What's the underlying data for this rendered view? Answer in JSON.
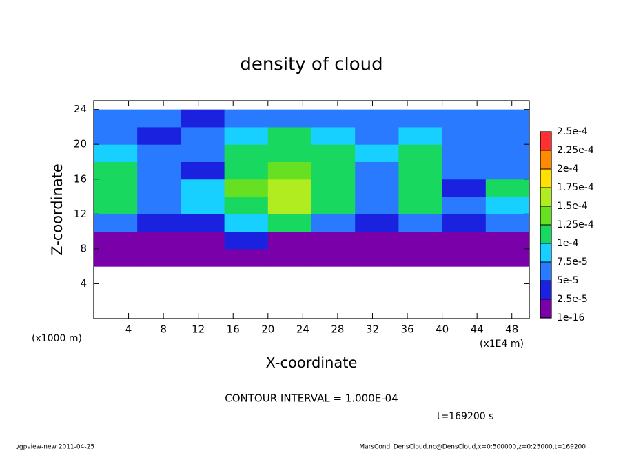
{
  "chart_data": {
    "type": "heatmap",
    "title": "density of cloud",
    "x_label": "X-coordinate",
    "y_label": "Z-coordinate",
    "x_unit_left": "(x1000 m)",
    "x_unit_right": "(x1E4 m)",
    "contour_note": "CONTOUR INTERVAL = 1.000E-04",
    "time_note": "t=169200 s",
    "footer_left": "./gpview-new  2011-04-25",
    "footer_right": "MarsCond_DensCloud.nc@DensCloud,x=0:500000,z=0:25000,t=169200",
    "xlim": [
      0,
      50
    ],
    "ylim": [
      0,
      25
    ],
    "xticks": [
      4,
      8,
      12,
      16,
      20,
      24,
      28,
      32,
      36,
      40,
      44,
      48
    ],
    "yticks": [
      4,
      8,
      12,
      16,
      20,
      24
    ],
    "x": [
      0,
      5,
      10,
      15,
      20,
      25,
      30,
      35,
      40,
      45,
      50
    ],
    "z": [
      6,
      8,
      10,
      12,
      14,
      16,
      18,
      20,
      22,
      24
    ],
    "values": [
      [
        1e-06,
        1e-06,
        1e-06,
        1e-06,
        1e-06,
        1e-06,
        1e-06,
        1e-06,
        1e-06,
        1e-06
      ],
      [
        1e-05,
        1e-05,
        1e-05,
        3e-05,
        1e-05,
        1e-05,
        1e-05,
        1e-05,
        1e-05,
        1e-05
      ],
      [
        6e-05,
        4e-05,
        4e-05,
        9e-05,
        0.00011,
        7e-05,
        4e-05,
        6e-05,
        3e-05,
        5e-05
      ],
      [
        0.00011,
        7e-05,
        8e-05,
        0.00012,
        0.00015,
        0.00011,
        6e-05,
        0.00011,
        5e-05,
        9e-05
      ],
      [
        0.00012,
        6e-05,
        8e-05,
        0.00013,
        0.00016,
        0.00012,
        6e-05,
        0.00012,
        4e-05,
        0.0001
      ],
      [
        0.00012,
        5e-05,
        4e-05,
        0.00012,
        0.00014,
        0.00012,
        7e-05,
        0.00012,
        5e-05,
        6e-05
      ],
      [
        8e-05,
        5e-05,
        6e-05,
        0.00011,
        0.00012,
        0.00011,
        8e-05,
        0.0001,
        6e-05,
        7e-05
      ],
      [
        7e-05,
        4e-05,
        6e-05,
        9e-05,
        0.0001,
        9e-05,
        7e-05,
        8e-05,
        7e-05,
        7e-05
      ],
      [
        6e-05,
        5e-05,
        3e-05,
        7e-05,
        7e-05,
        7e-05,
        6e-05,
        7e-05,
        6e-05,
        6e-05
      ]
    ],
    "colorbar": {
      "ticks": [
        {
          "value": 1e-16,
          "label": "1e-16"
        },
        {
          "value": 2.5e-05,
          "label": "2.5e-5"
        },
        {
          "value": 5e-05,
          "label": "5e-5"
        },
        {
          "value": 7.5e-05,
          "label": "7.5e-5"
        },
        {
          "value": 0.0001,
          "label": "1e-4"
        },
        {
          "value": 0.000125,
          "label": "1.25e-4"
        },
        {
          "value": 0.00015,
          "label": "1.5e-4"
        },
        {
          "value": 0.000175,
          "label": "1.75e-4"
        },
        {
          "value": 0.0002,
          "label": "2e-4"
        },
        {
          "value": 0.000225,
          "label": "2.25e-4"
        },
        {
          "value": 0.00025,
          "label": "2.5e-4"
        }
      ],
      "colors": [
        "#7a00aa",
        "#1a22e0",
        "#2a7aff",
        "#18d0ff",
        "#18d860",
        "#66e020",
        "#b0ec20",
        "#ffe000",
        "#ff8a00",
        "#ff3030"
      ]
    }
  }
}
